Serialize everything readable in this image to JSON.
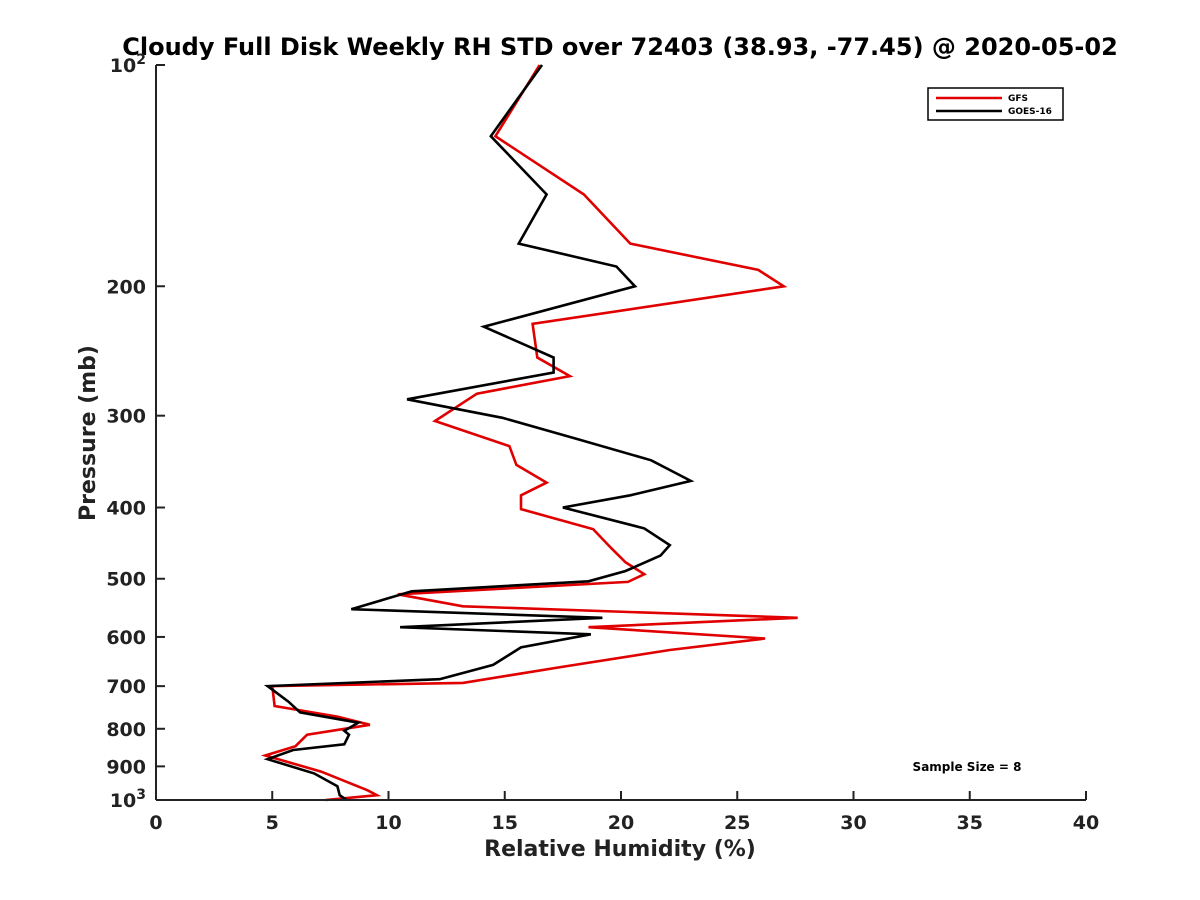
{
  "chart_data": {
    "type": "line",
    "title": "Cloudy Full Disk Weekly RH STD over 72403 (38.93, -77.45) @ 2020-05-02",
    "xlabel": "Relative Humidity (%)",
    "ylabel": "Pressure (mb)",
    "xlim": [
      0,
      40
    ],
    "ylim": [
      100,
      1000
    ],
    "y_scale": "log",
    "y_reversed": true,
    "grid": false,
    "legend_position": "top-right",
    "x_ticks": [
      "0",
      "5",
      "10",
      "15",
      "20",
      "25",
      "30",
      "35",
      "40"
    ],
    "x_tick_values": [
      0,
      5,
      10,
      15,
      20,
      25,
      30,
      35,
      40
    ],
    "y_ticks": [
      {
        "value": 100,
        "base": "10",
        "exp": "2"
      },
      {
        "value": 200,
        "label": "200"
      },
      {
        "value": 300,
        "label": "300"
      },
      {
        "value": 400,
        "label": "400"
      },
      {
        "value": 500,
        "label": "500"
      },
      {
        "value": 600,
        "label": "600"
      },
      {
        "value": 700,
        "label": "700"
      },
      {
        "value": 800,
        "label": "800"
      },
      {
        "value": 900,
        "label": "900"
      },
      {
        "value": 1000,
        "base": "10",
        "exp": "3"
      }
    ],
    "series": [
      {
        "name": "GFS",
        "color": "#e00000",
        "points": [
          [
            16.5,
            100
          ],
          [
            14.6,
            125
          ],
          [
            18.4,
            150
          ],
          [
            20.4,
            175
          ],
          [
            25.9,
            190
          ],
          [
            27.0,
            200
          ],
          [
            16.2,
            225
          ],
          [
            16.4,
            250
          ],
          [
            17.8,
            265
          ],
          [
            13.8,
            280
          ],
          [
            12.0,
            305
          ],
          [
            15.2,
            330
          ],
          [
            15.5,
            350
          ],
          [
            16.8,
            370
          ],
          [
            15.7,
            385
          ],
          [
            15.7,
            402
          ],
          [
            18.8,
            428
          ],
          [
            19.6,
            455
          ],
          [
            20.2,
            475
          ],
          [
            21.0,
            493
          ],
          [
            20.3,
            505
          ],
          [
            10.4,
            525
          ],
          [
            13.2,
            545
          ],
          [
            27.6,
            565
          ],
          [
            18.6,
            582
          ],
          [
            26.2,
            603
          ],
          [
            22.1,
            625
          ],
          [
            17.6,
            658
          ],
          [
            13.2,
            693
          ],
          [
            5.0,
            700
          ],
          [
            5.1,
            745
          ],
          [
            7.8,
            770
          ],
          [
            9.2,
            790
          ],
          [
            6.5,
            815
          ],
          [
            6.0,
            845
          ],
          [
            4.7,
            870
          ],
          [
            7.1,
            915
          ],
          [
            9.1,
            970
          ],
          [
            9.5,
            985
          ],
          [
            7.3,
            1000
          ]
        ]
      },
      {
        "name": "GOES-16",
        "color": "#000000",
        "points": [
          [
            16.6,
            100
          ],
          [
            14.4,
            125
          ],
          [
            16.8,
            150
          ],
          [
            15.6,
            175
          ],
          [
            19.8,
            188
          ],
          [
            20.6,
            200
          ],
          [
            14.1,
            227
          ],
          [
            17.1,
            250
          ],
          [
            17.1,
            262
          ],
          [
            10.8,
            285
          ],
          [
            14.9,
            302
          ],
          [
            18.0,
            322
          ],
          [
            21.3,
            345
          ],
          [
            23.0,
            368
          ],
          [
            20.4,
            385
          ],
          [
            17.5,
            400
          ],
          [
            21.0,
            427
          ],
          [
            22.1,
            450
          ],
          [
            21.7,
            465
          ],
          [
            20.2,
            488
          ],
          [
            18.6,
            504
          ],
          [
            11.0,
            520
          ],
          [
            8.4,
            550
          ],
          [
            19.2,
            565
          ],
          [
            10.5,
            582
          ],
          [
            18.7,
            595
          ],
          [
            15.7,
            620
          ],
          [
            14.5,
            655
          ],
          [
            12.2,
            685
          ],
          [
            4.8,
            700
          ],
          [
            5.7,
            735
          ],
          [
            6.2,
            760
          ],
          [
            8.7,
            785
          ],
          [
            8.1,
            805
          ],
          [
            8.3,
            815
          ],
          [
            8.1,
            840
          ],
          [
            5.9,
            855
          ],
          [
            4.8,
            880
          ],
          [
            6.8,
            920
          ],
          [
            7.8,
            958
          ],
          [
            7.9,
            985
          ],
          [
            8.2,
            1000
          ]
        ]
      }
    ],
    "annotations": [
      "Sample Size = 8"
    ]
  }
}
